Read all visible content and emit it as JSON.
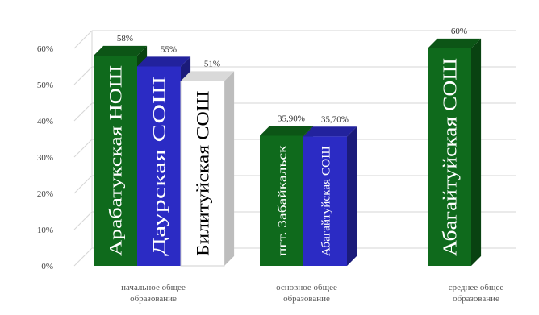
{
  "chart_data": {
    "type": "bar",
    "title": "",
    "xlabel": "",
    "ylabel": "",
    "ylim": [
      0,
      60
    ],
    "yticks": [
      "0%",
      "10%",
      "20%",
      "30%",
      "40%",
      "50%",
      "60%"
    ],
    "grid": true,
    "legend": "none",
    "style": "3d-clustered",
    "categories": [
      {
        "label": "начальное общее образование",
        "lines": [
          "начальное общее",
          "образование"
        ]
      },
      {
        "label": "основное общее образование",
        "lines": [
          "основное общее",
          "образование"
        ]
      },
      {
        "label": "среднее общее образование",
        "lines": [
          "среднее общее",
          "образование"
        ]
      }
    ],
    "bars": [
      {
        "category": 0,
        "name": "Арабатукская НОШ",
        "value": 58,
        "value_label": "58%",
        "color": "#0f6a1c"
      },
      {
        "category": 0,
        "name": "Даурская СОШ",
        "value": 55,
        "value_label": "55%",
        "color": "#2b2bc4"
      },
      {
        "category": 0,
        "name": "Билитуйская СОШ",
        "value": 51,
        "value_label": "51%",
        "color": "#ffffff"
      },
      {
        "category": 1,
        "name": "пгт. Забайкальск",
        "value": 35.9,
        "value_label": "35,90%",
        "color": "#0f6a1c"
      },
      {
        "category": 1,
        "name": "Абагайтуйская СОШ",
        "value": 35.7,
        "value_label": "35,70%",
        "color": "#2b2bc4"
      },
      {
        "category": 2,
        "name": "Абагайтуйская СОШ",
        "value": 60,
        "value_label": "60%",
        "color": "#0f6a1c"
      }
    ]
  }
}
